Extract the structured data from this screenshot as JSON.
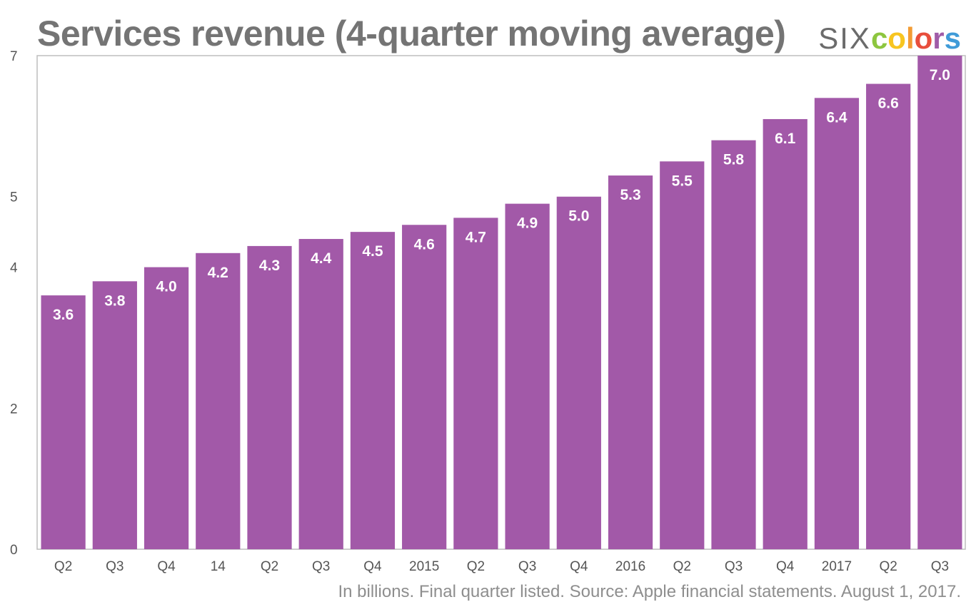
{
  "header": {
    "logo": {
      "prefix": "SIX",
      "letters": [
        {
          "char": "c",
          "color": "#8dc63f"
        },
        {
          "char": "o",
          "color": "#f7c520"
        },
        {
          "char": "l",
          "color": "#f39c34"
        },
        {
          "char": "o",
          "color": "#e84e3c"
        },
        {
          "char": "r",
          "color": "#a05ca8"
        },
        {
          "char": "s",
          "color": "#3f9bd8"
        }
      ]
    }
  },
  "footnote": "In billions. Final quarter listed. Source: Apple financial statements. August 1, 2017.",
  "chart_data": {
    "type": "bar",
    "title": "Services revenue (4-quarter moving average)",
    "categories": [
      "Q2",
      "Q3",
      "Q4",
      "14",
      "Q2",
      "Q3",
      "Q4",
      "2015",
      "Q2",
      "Q3",
      "Q4",
      "2016",
      "Q2",
      "Q3",
      "Q4",
      "2017",
      "Q2",
      "Q3"
    ],
    "values": [
      3.6,
      3.8,
      4.0,
      4.2,
      4.3,
      4.4,
      4.5,
      4.6,
      4.7,
      4.9,
      5.0,
      5.3,
      5.5,
      5.8,
      6.1,
      6.4,
      6.6,
      7.0
    ],
    "value_labels": [
      "3.6",
      "3.8",
      "4.0",
      "4.2",
      "4.3",
      "4.4",
      "4.5",
      "4.6",
      "4.7",
      "4.9",
      "5.0",
      "5.3",
      "5.5",
      "5.8",
      "6.1",
      "6.4",
      "6.6",
      "7.0"
    ],
    "y_ticks": [
      {
        "label": "0",
        "value": 0
      },
      {
        "label": "2",
        "value": 2
      },
      {
        "label": "4",
        "value": 4
      },
      {
        "label": "5",
        "value": 5
      },
      {
        "label": "7",
        "value": 7
      }
    ],
    "ylim": [
      0,
      7
    ],
    "bar_color": "#a259a8",
    "grid": false,
    "xlabel": "",
    "ylabel": ""
  }
}
